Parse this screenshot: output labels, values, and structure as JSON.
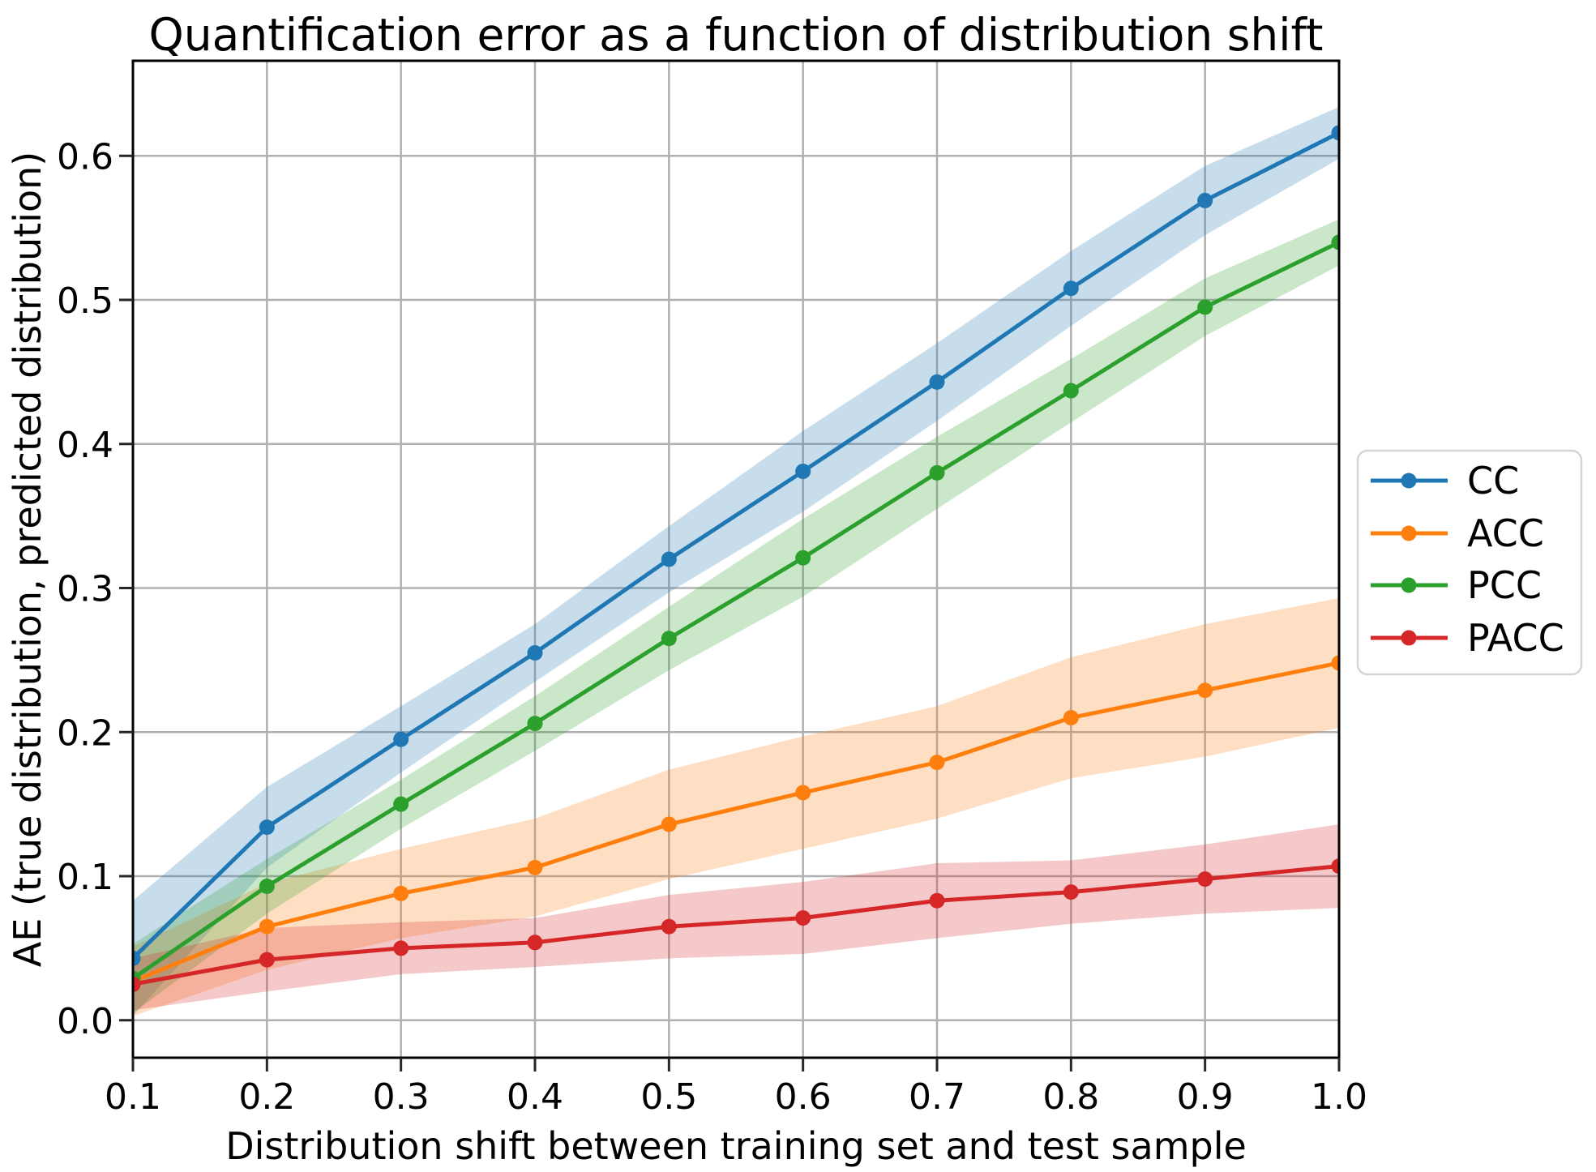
{
  "chart_data": {
    "type": "line",
    "title": "Quantification error as a function of distribution shift",
    "xlabel": "Distribution shift between training set and test sample",
    "ylabel": "AE (true distribution, predicted distribution)",
    "x": [
      0.1,
      0.2,
      0.3,
      0.4,
      0.5,
      0.6,
      0.7,
      0.8,
      0.9,
      1.0
    ],
    "x_tick_labels": [
      "0.1",
      "0.2",
      "0.3",
      "0.4",
      "0.5",
      "0.6",
      "0.7",
      "0.8",
      "0.9",
      "1.0"
    ],
    "y_tick_values": [
      0.0,
      0.1,
      0.2,
      0.3,
      0.4,
      0.5,
      0.6
    ],
    "y_tick_labels": [
      "0.0",
      "0.1",
      "0.2",
      "0.3",
      "0.4",
      "0.5",
      "0.6"
    ],
    "xlim": [
      0.1,
      1.0
    ],
    "ylim": [
      -0.026,
      0.666
    ],
    "grid": true,
    "grid_color": "#b0b0b0",
    "band_opacity": 0.25,
    "marker": "circle",
    "legend_position": "center-right-outside",
    "series": [
      {
        "name": "CC",
        "color": "#1f77b4",
        "values": [
          0.043,
          0.134,
          0.195,
          0.255,
          0.32,
          0.381,
          0.443,
          0.508,
          0.569,
          0.616
        ],
        "band_halfwidth": [
          0.04,
          0.028,
          0.023,
          0.02,
          0.023,
          0.028,
          0.027,
          0.026,
          0.024,
          0.018
        ]
      },
      {
        "name": "ACC",
        "color": "#ff7f0e",
        "values": [
          0.027,
          0.065,
          0.088,
          0.106,
          0.136,
          0.158,
          0.179,
          0.21,
          0.229,
          0.248
        ],
        "band_halfwidth": [
          0.024,
          0.03,
          0.031,
          0.034,
          0.038,
          0.039,
          0.039,
          0.042,
          0.046,
          0.045
        ]
      },
      {
        "name": "PCC",
        "color": "#2ca02c",
        "values": [
          0.029,
          0.093,
          0.15,
          0.206,
          0.265,
          0.321,
          0.38,
          0.437,
          0.495,
          0.54
        ],
        "band_halfwidth": [
          0.024,
          0.019,
          0.017,
          0.019,
          0.022,
          0.027,
          0.025,
          0.022,
          0.02,
          0.016
        ]
      },
      {
        "name": "PACC",
        "color": "#d62728",
        "values": [
          0.025,
          0.042,
          0.05,
          0.054,
          0.065,
          0.071,
          0.083,
          0.089,
          0.098,
          0.107
        ],
        "band_halfwidth": [
          0.018,
          0.022,
          0.018,
          0.017,
          0.022,
          0.025,
          0.026,
          0.022,
          0.024,
          0.029
        ]
      }
    ]
  }
}
